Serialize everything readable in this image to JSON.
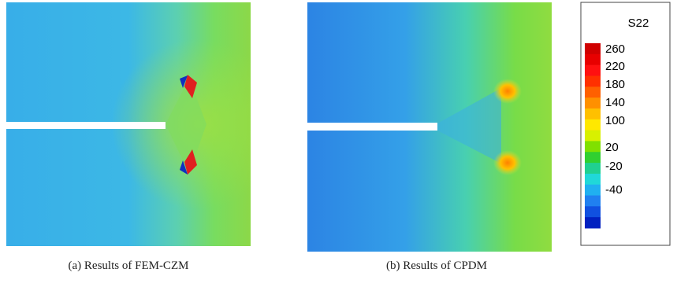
{
  "figure": {
    "panels": [
      {
        "caption": "(a) Results of FEM-CZM"
      },
      {
        "caption": "(b) Results of CPDM"
      }
    ],
    "legend": {
      "title": "S22",
      "labels": [
        "260",
        "220",
        "180",
        "140",
        "100",
        "20",
        "-20",
        "-40"
      ]
    }
  }
}
